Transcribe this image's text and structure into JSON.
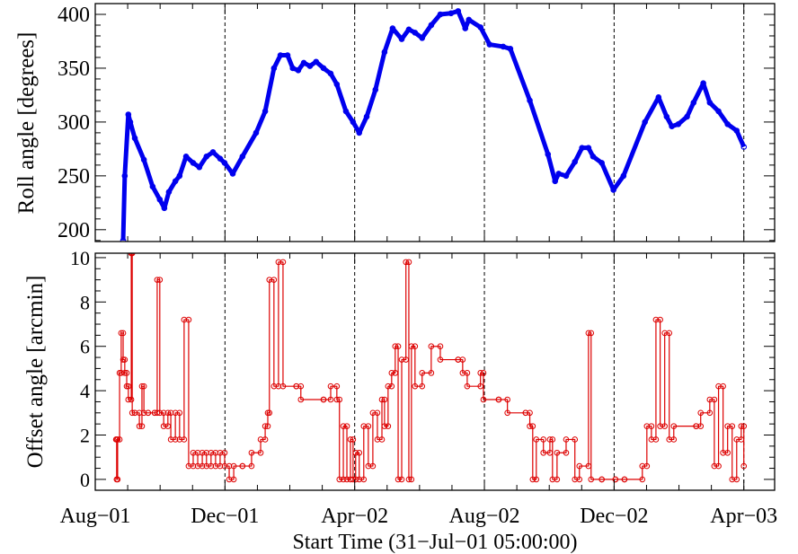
{
  "chart_data": [
    {
      "type": "line",
      "panel": "top",
      "ylabel": "Roll angle [degrees]",
      "ylim": [
        189,
        410
      ],
      "yticks": [
        200,
        250,
        300,
        350,
        400
      ],
      "xlim": [
        0,
        20.95
      ],
      "x_unit": "months since Aug-01",
      "color": "#0000ee",
      "x": [
        0.86,
        0.91,
        1.02,
        1.08,
        1.22,
        1.5,
        1.77,
        1.99,
        2.13,
        2.27,
        2.47,
        2.6,
        2.8,
        3.02,
        3.21,
        3.43,
        3.63,
        3.85,
        3.99,
        4.24,
        4.54,
        4.96,
        5.24,
        5.51,
        5.71,
        5.93,
        6.09,
        6.26,
        6.43,
        6.62,
        6.81,
        7.04,
        7.26,
        7.45,
        7.73,
        7.95,
        8.14,
        8.37,
        8.64,
        8.92,
        9.17,
        9.45,
        9.67,
        9.86,
        10.08,
        10.36,
        10.64,
        10.97,
        11.19,
        11.41,
        11.52,
        11.88,
        12.16,
        12.58,
        12.8,
        13.4,
        13.96,
        14.18,
        14.29,
        14.52,
        14.79,
        15.01,
        15.21,
        15.35,
        15.62,
        15.98,
        16.29,
        16.95,
        17.37,
        17.62,
        17.78,
        17.98,
        18.25,
        18.45,
        18.75,
        18.95,
        19.22,
        19.5,
        19.78,
        20.0
      ],
      "y": [
        190,
        250,
        307,
        300,
        285,
        265,
        240,
        228,
        220,
        235,
        245,
        250,
        268,
        262,
        258,
        268,
        272,
        266,
        262,
        252,
        268,
        290,
        310,
        350,
        362,
        362,
        350,
        348,
        355,
        352,
        356,
        350,
        345,
        335,
        310,
        300,
        290,
        305,
        330,
        365,
        387,
        377,
        386,
        383,
        378,
        390,
        400,
        401,
        403,
        387,
        395,
        388,
        372,
        370,
        368,
        320,
        270,
        245,
        252,
        250,
        263,
        276,
        276,
        268,
        262,
        237,
        250,
        300,
        323,
        305,
        296,
        298,
        305,
        318,
        336,
        318,
        310,
        298,
        292,
        277
      ]
    },
    {
      "type": "line",
      "panel": "bottom",
      "ylabel": "Offset angle [arcmin]",
      "ylim": [
        -0.49,
        10.2
      ],
      "yticks": [
        0,
        2,
        4,
        6,
        8,
        10
      ],
      "xlim": [
        0,
        20.95
      ],
      "color": "#dd0000",
      "x": [
        0.64,
        0.66,
        0.69,
        0.75,
        0.8,
        0.86,
        0.91,
        0.97,
        1.02,
        1.11,
        1.14,
        1.22,
        1.36,
        1.44,
        1.5,
        1.63,
        1.83,
        1.91,
        1.99,
        2.11,
        2.24,
        2.33,
        2.47,
        2.6,
        2.74,
        2.88,
        3.02,
        3.16,
        3.3,
        3.43,
        3.57,
        3.71,
        3.85,
        3.99,
        4.13,
        4.27,
        4.54,
        4.82,
        5.1,
        5.24,
        5.32,
        5.37,
        5.51,
        5.65,
        5.79,
        6.2,
        6.34,
        7.04,
        7.26,
        7.45,
        7.53,
        7.65,
        7.76,
        7.87,
        7.95,
        8.03,
        8.14,
        8.28,
        8.42,
        8.56,
        8.7,
        8.84,
        8.92,
        9.03,
        9.14,
        9.25,
        9.34,
        9.45,
        9.58,
        9.67,
        9.75,
        9.86,
        10.08,
        10.36,
        10.64,
        11.19,
        11.33,
        11.47,
        11.88,
        11.97,
        12.44,
        12.71,
        13.27,
        13.4,
        13.49,
        13.6,
        13.82,
        14.02,
        14.1,
        14.24,
        14.52,
        14.79,
        14.93,
        15.21,
        15.29,
        15.62,
        16.04,
        16.32,
        16.87,
        17.01,
        17.15,
        17.29,
        17.42,
        17.56,
        17.7,
        17.84,
        18.53,
        18.67,
        18.95,
        19.09,
        19.22,
        19.36,
        19.5,
        19.64,
        19.78,
        19.92,
        20.0
      ],
      "y": [
        1.8,
        0,
        1.8,
        4.8,
        6.6,
        5.4,
        4.8,
        4.2,
        3.6,
        10.2,
        3,
        3,
        2.4,
        4.2,
        3,
        3,
        3,
        9,
        3,
        2.4,
        3,
        1.8,
        3,
        1.8,
        7.2,
        0.6,
        1.2,
        0.6,
        1.2,
        0.6,
        1.2,
        0.6,
        1.2,
        0.6,
        0,
        0.6,
        0.6,
        1.2,
        1.8,
        2.4,
        3,
        9,
        4.2,
        9.8,
        4.2,
        4.2,
        3.6,
        3.6,
        4.2,
        3.6,
        0,
        2.4,
        0,
        1.8,
        0,
        1.2,
        0,
        2.4,
        0.6,
        3,
        1.8,
        3.6,
        2.4,
        4.2,
        4.8,
        6,
        0,
        5.4,
        9.8,
        0,
        6,
        4.2,
        4.8,
        6,
        5.4,
        5.4,
        4.8,
        4.2,
        4.8,
        3.6,
        3.6,
        3,
        3,
        2.4,
        0,
        1.8,
        1.2,
        1.8,
        0,
        1.2,
        1.8,
        0,
        0.6,
        6.6,
        0,
        0,
        0,
        0,
        0.6,
        2.4,
        1.8,
        7.2,
        2.4,
        6.6,
        1.8,
        2.4,
        2.4,
        3,
        3.6,
        0.6,
        4.2,
        1.2,
        2.4,
        0,
        1.8,
        2.4,
        0.6
      ]
    }
  ],
  "x_axis": {
    "label": "Start Time (31−Jul−01 05:00:00)",
    "ticks": [
      {
        "month": 0,
        "label": "Aug−01"
      },
      {
        "month": 4,
        "label": "Dec−01"
      },
      {
        "month": 8,
        "label": "Apr−02"
      },
      {
        "month": 12,
        "label": "Aug−02"
      },
      {
        "month": 16,
        "label": "Dec−02"
      },
      {
        "month": 20,
        "label": "Apr−03"
      }
    ],
    "dashed_lines": [
      4,
      8,
      12,
      16,
      20
    ]
  }
}
